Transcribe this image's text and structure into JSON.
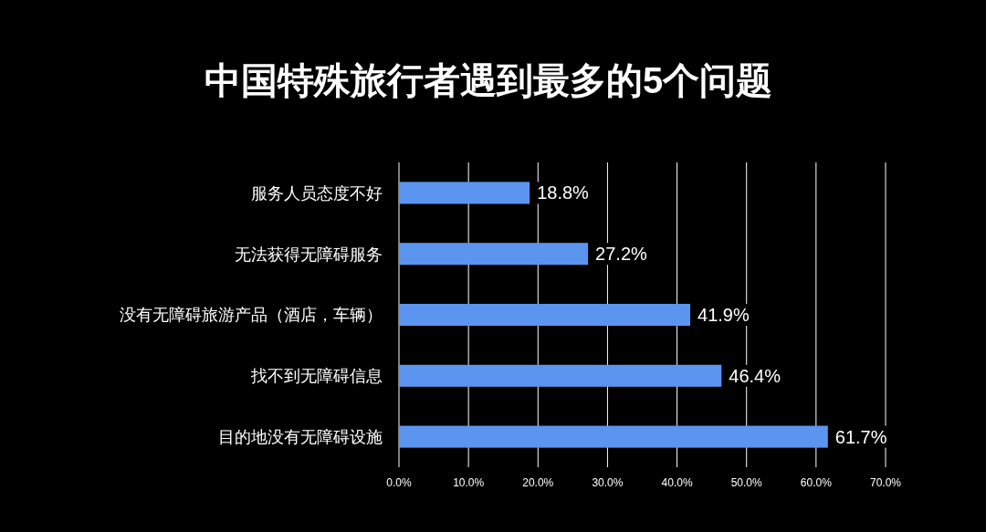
{
  "chart_data": {
    "type": "bar",
    "orientation": "horizontal",
    "title": "中国特殊旅行者遇到最多的5个问题",
    "categories": [
      "服务人员态度不好",
      "无法获得无障碍服务",
      "没有无障碍旅游产品（酒店，车辆）",
      "找不到无障碍信息",
      "目的地没有无障碍设施"
    ],
    "values": [
      18.8,
      27.2,
      41.9,
      46.4,
      61.7
    ],
    "value_labels": [
      "18.8%",
      "27.2%",
      "41.9%",
      "46.4%",
      "61.7%"
    ],
    "color": "#5b95f0",
    "xlim": [
      0,
      70
    ],
    "xticks": [
      {
        "value": 0,
        "label": "0.0%"
      },
      {
        "value": 10,
        "label": "10.0%"
      },
      {
        "value": 20,
        "label": "20.0%"
      },
      {
        "value": 30,
        "label": "30.0%"
      },
      {
        "value": 40,
        "label": "40.0%"
      },
      {
        "value": 50,
        "label": "50.0%"
      },
      {
        "value": 60,
        "label": "60.0%"
      },
      {
        "value": 70,
        "label": "70.0%"
      }
    ],
    "grid": "x"
  }
}
